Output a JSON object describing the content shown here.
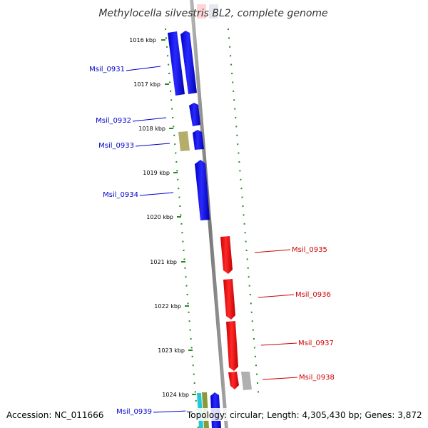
{
  "title": "Methylocella silvestris BL2, complete genome",
  "accession": "Accession: NC_011666",
  "topology": "Topology: circular; Length: 4,305,430 bp; Genes: 3,872",
  "colors": {
    "forward": "#0000ff",
    "reverse": "#ff0000",
    "backbone": "#888888",
    "ticks": "#228b22",
    "olive": "#b5ad6a",
    "gray": "#b0b0b0",
    "cyan": "#20c8d8",
    "green": "#7a9a3a"
  },
  "ticks": [
    "1016 kbp",
    "1017 kbp",
    "1018 kbp",
    "1019 kbp",
    "1020 kbp",
    "1021 kbp",
    "1022 kbp",
    "1023 kbp",
    "1024 kbp"
  ],
  "genes_left": [
    "Msil_0931",
    "Msil_0932",
    "Msil_0933",
    "Msil_0934",
    "Msil_0939"
  ],
  "genes_right": [
    "Msil_0935",
    "Msil_0936",
    "Msil_0937",
    "Msil_0938"
  ]
}
